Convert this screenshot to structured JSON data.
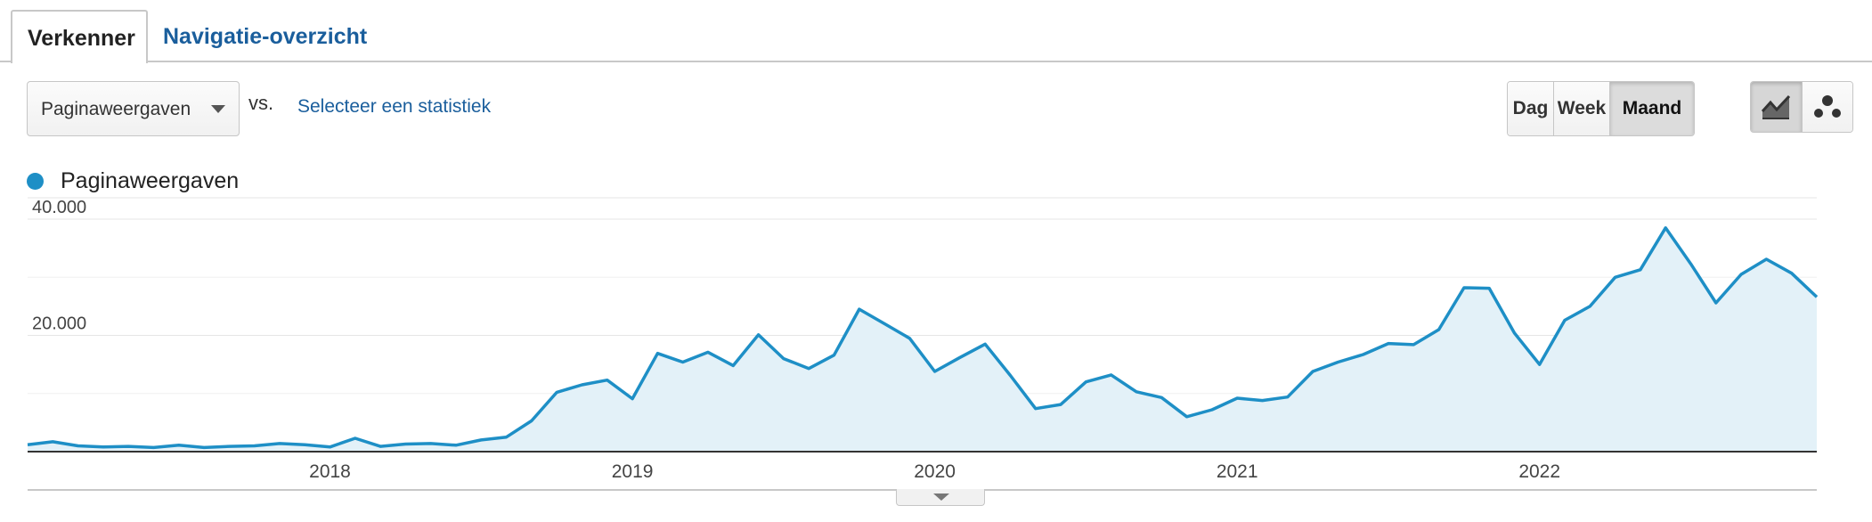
{
  "tabs": {
    "active_label": "Verkenner",
    "inactive_label": "Navigatie-overzicht"
  },
  "controls": {
    "metric_select_value": "Paginaweergaven",
    "vs_label": "vs.",
    "select_stat_link": "Selecteer een statistiek",
    "period_buttons": [
      "Dag",
      "Week",
      "Maand"
    ],
    "active_period": "Maand",
    "chart_type_icons": [
      "line-chart-icon",
      "motion-chart-icon"
    ],
    "active_chart_type": "line-chart-icon"
  },
  "colors": {
    "series": "#1e8fc6",
    "fill": "#e3f1f8",
    "link": "#1a5e9c"
  },
  "chart_data": {
    "type": "area",
    "x_start": "2017-01",
    "x_tick_labels": [
      "2018",
      "2019",
      "2020",
      "2021",
      "2022"
    ],
    "x_ticks": [
      "2018-01",
      "2019-01",
      "2020-01",
      "2021-01",
      "2022-01"
    ],
    "y_tick_labels": [
      "40.000",
      "20.000"
    ],
    "y_ticks": [
      40000,
      20000
    ],
    "ylim": [
      0,
      40000
    ],
    "grid": true,
    "legend": "top-left",
    "series": [
      {
        "name": "Paginaweergaven",
        "values": [
          1200,
          1700,
          1000,
          800,
          900,
          700,
          1100,
          700,
          900,
          1000,
          1400,
          1200,
          800,
          2300,
          900,
          1300,
          1400,
          1100,
          2000,
          2500,
          5300,
          10200,
          11500,
          12300,
          9100,
          16900,
          15400,
          17100,
          14800,
          20100,
          16000,
          14300,
          16600,
          24500,
          22000,
          19500,
          13800,
          16200,
          18500,
          13100,
          7400,
          8100,
          12000,
          13200,
          10300,
          9300,
          6000,
          7200,
          9200,
          8800,
          9400,
          13800,
          15400,
          16700,
          18600,
          18400,
          21000,
          28200,
          28100,
          20400,
          15000,
          22600,
          25000,
          30000,
          31300,
          38500,
          32300,
          25600,
          30500,
          33100,
          30700,
          26600
        ]
      }
    ]
  }
}
